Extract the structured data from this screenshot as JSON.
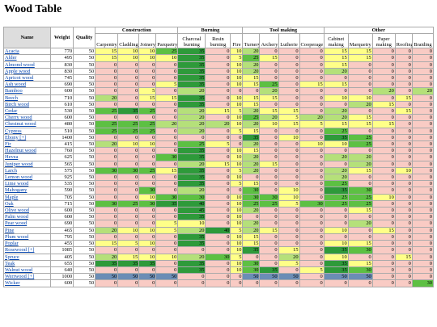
{
  "title": "Wood Table",
  "headers": {
    "name": "Name",
    "weight": "Weight",
    "quality": "Quality",
    "groups": [
      {
        "label": "Construction",
        "columns": [
          "Carpentry",
          "Cladding",
          "Joinery",
          "Parquetry"
        ]
      },
      {
        "label": "Burning",
        "columns": [
          "Charcoal burning",
          "Resin burning",
          "Fire"
        ]
      },
      {
        "label": "Tool making",
        "columns": [
          "Turnery",
          "Archery",
          "Lutherie",
          "Cooperage"
        ]
      },
      {
        "label": "Other",
        "columns": [
          "Cabinet making",
          "Marquetry",
          "Paper making",
          "Roofing",
          "Braiding"
        ]
      }
    ]
  },
  "rows": [
    [
      "Acacia",
      770,
      50,
      15,
      10,
      10,
      25,
      35,
      0,
      10,
      20,
      0,
      0,
      0,
      15,
      15,
      0,
      0,
      0
    ],
    [
      "Alder",
      495,
      50,
      15,
      10,
      10,
      10,
      35,
      0,
      5,
      25,
      15,
      0,
      0,
      15,
      15,
      0,
      0,
      0
    ],
    [
      "Almond wood",
      830,
      50,
      0,
      0,
      0,
      0,
      35,
      0,
      10,
      20,
      0,
      0,
      0,
      15,
      0,
      0,
      0,
      0
    ],
    [
      "Apple wood",
      830,
      50,
      0,
      0,
      0,
      0,
      35,
      0,
      10,
      20,
      0,
      0,
      0,
      20,
      0,
      0,
      0,
      0
    ],
    [
      "Apricot wood",
      745,
      50,
      0,
      0,
      0,
      0,
      35,
      0,
      10,
      15,
      0,
      0,
      0,
      0,
      0,
      0,
      0,
      0
    ],
    [
      "Ash wood",
      690,
      50,
      0,
      0,
      0,
      5,
      35,
      0,
      10,
      15,
      25,
      0,
      15,
      15,
      0,
      0,
      0,
      0
    ],
    [
      "Bamboo",
      600,
      50,
      0,
      0,
      5,
      0,
      20,
      0,
      0,
      0,
      20,
      0,
      0,
      0,
      0,
      20,
      0,
      20
    ],
    [
      "Beech",
      710,
      50,
      20,
      0,
      15,
      15,
      35,
      0,
      10,
      15,
      15,
      0,
      0,
      10,
      10,
      0,
      15,
      0
    ],
    [
      "Birch wood",
      610,
      50,
      0,
      0,
      0,
      0,
      35,
      0,
      10,
      15,
      0,
      0,
      0,
      0,
      20,
      15,
      0,
      0
    ],
    [
      "Cedar",
      530,
      50,
      25,
      35,
      25,
      0,
      20,
      15,
      5,
      20,
      15,
      15,
      0,
      20,
      0,
      0,
      15,
      0
    ],
    [
      "Cherry wood",
      600,
      50,
      0,
      0,
      0,
      0,
      20,
      0,
      10,
      25,
      20,
      5,
      20,
      20,
      15,
      0,
      0,
      0
    ],
    [
      "Chestnut wood",
      480,
      50,
      25,
      25,
      25,
      20,
      20,
      20,
      10,
      20,
      10,
      15,
      5,
      15,
      15,
      15,
      0,
      0
    ],
    [
      "Cypress",
      510,
      50,
      25,
      25,
      25,
      0,
      20,
      0,
      5,
      15,
      0,
      0,
      0,
      25,
      0,
      0,
      0,
      0
    ],
    [
      "Ebony [+]",
      1400,
      50,
      0,
      0,
      0,
      0,
      0,
      0,
      0,
      35,
      0,
      10,
      0,
      35,
      25,
      0,
      0,
      0
    ],
    [
      "Fir",
      415,
      50,
      20,
      10,
      10,
      0,
      25,
      5,
      0,
      20,
      0,
      0,
      10,
      10,
      25,
      0,
      0,
      0
    ],
    [
      "Hazelnut wood",
      760,
      50,
      0,
      0,
      0,
      0,
      35,
      0,
      10,
      15,
      0,
      0,
      0,
      0,
      0,
      0,
      0,
      0
    ],
    [
      "Hevea",
      625,
      50,
      0,
      0,
      0,
      30,
      35,
      0,
      10,
      20,
      0,
      0,
      0,
      20,
      20,
      0,
      0,
      0
    ],
    [
      "Juniper wood",
      565,
      50,
      0,
      0,
      0,
      0,
      20,
      15,
      10,
      20,
      15,
      0,
      0,
      0,
      20,
      0,
      0,
      0
    ],
    [
      "Larch",
      575,
      50,
      30,
      30,
      25,
      15,
      35,
      0,
      5,
      20,
      0,
      0,
      0,
      20,
      15,
      0,
      10,
      0
    ],
    [
      "Lemon wood",
      925,
      50,
      0,
      0,
      0,
      0,
      35,
      0,
      10,
      0,
      0,
      0,
      0,
      20,
      0,
      0,
      0,
      0
    ],
    [
      "Lime wood",
      535,
      50,
      0,
      0,
      0,
      0,
      35,
      0,
      5,
      15,
      0,
      0,
      0,
      25,
      0,
      0,
      0,
      0
    ],
    [
      "Mahogany",
      590,
      50,
      0,
      0,
      30,
      0,
      20,
      0,
      0,
      30,
      0,
      10,
      0,
      35,
      30,
      0,
      0,
      0
    ],
    [
      "Maple",
      705,
      50,
      0,
      0,
      10,
      30,
      30,
      0,
      10,
      30,
      30,
      10,
      0,
      25,
      25,
      10,
      0,
      0
    ],
    [
      "Oak",
      715,
      50,
      30,
      25,
      30,
      35,
      40,
      0,
      10,
      25,
      25,
      5,
      30,
      25,
      25,
      0,
      0,
      0
    ],
    [
      "Olive wood",
      600,
      50,
      0,
      0,
      0,
      0,
      45,
      0,
      10,
      20,
      0,
      0,
      0,
      0,
      15,
      0,
      0,
      0
    ],
    [
      "Palm wood",
      600,
      50,
      0,
      0,
      0,
      0,
      35,
      0,
      10,
      0,
      0,
      0,
      0,
      0,
      0,
      0,
      0,
      0
    ],
    [
      "Pear wood",
      690,
      50,
      0,
      0,
      0,
      5,
      10,
      0,
      10,
      20,
      0,
      0,
      0,
      0,
      20,
      0,
      0,
      0
    ],
    [
      "Pine",
      465,
      50,
      20,
      10,
      10,
      5,
      20,
      40,
      5,
      20,
      15,
      0,
      0,
      10,
      0,
      15,
      0,
      0
    ],
    [
      "Plum wood",
      795,
      50,
      0,
      0,
      0,
      0,
      35,
      0,
      10,
      15,
      0,
      0,
      0,
      0,
      0,
      0,
      0,
      0
    ],
    [
      "Poplar",
      455,
      50,
      15,
      5,
      10,
      0,
      35,
      0,
      10,
      15,
      0,
      0,
      0,
      10,
      15,
      0,
      0,
      0
    ],
    [
      "Rosewood [+]",
      1085,
      50,
      0,
      0,
      0,
      0,
      0,
      0,
      10,
      35,
      0,
      15,
      0,
      35,
      30,
      0,
      0,
      0
    ],
    [
      "Spruce",
      405,
      50,
      20,
      15,
      10,
      10,
      20,
      30,
      5,
      0,
      0,
      20,
      0,
      10,
      0,
      0,
      15,
      0
    ],
    [
      "Teak",
      655,
      50,
      35,
      35,
      35,
      0,
      35,
      0,
      10,
      30,
      0,
      5,
      0,
      35,
      15,
      0,
      0,
      0
    ],
    [
      "Walnut wood",
      640,
      50,
      0,
      0,
      0,
      0,
      35,
      0,
      10,
      30,
      35,
      0,
      5,
      35,
      30,
      0,
      0,
      0
    ],
    [
      "Werrwood [+]",
      1000,
      50,
      50,
      50,
      50,
      50,
      0,
      0,
      0,
      50,
      50,
      50,
      0,
      50,
      50,
      0,
      0,
      0
    ],
    [
      "Wicker",
      600,
      50,
      0,
      0,
      0,
      0,
      0,
      0,
      0,
      0,
      0,
      0,
      0,
      0,
      0,
      0,
      0,
      30
    ]
  ]
}
